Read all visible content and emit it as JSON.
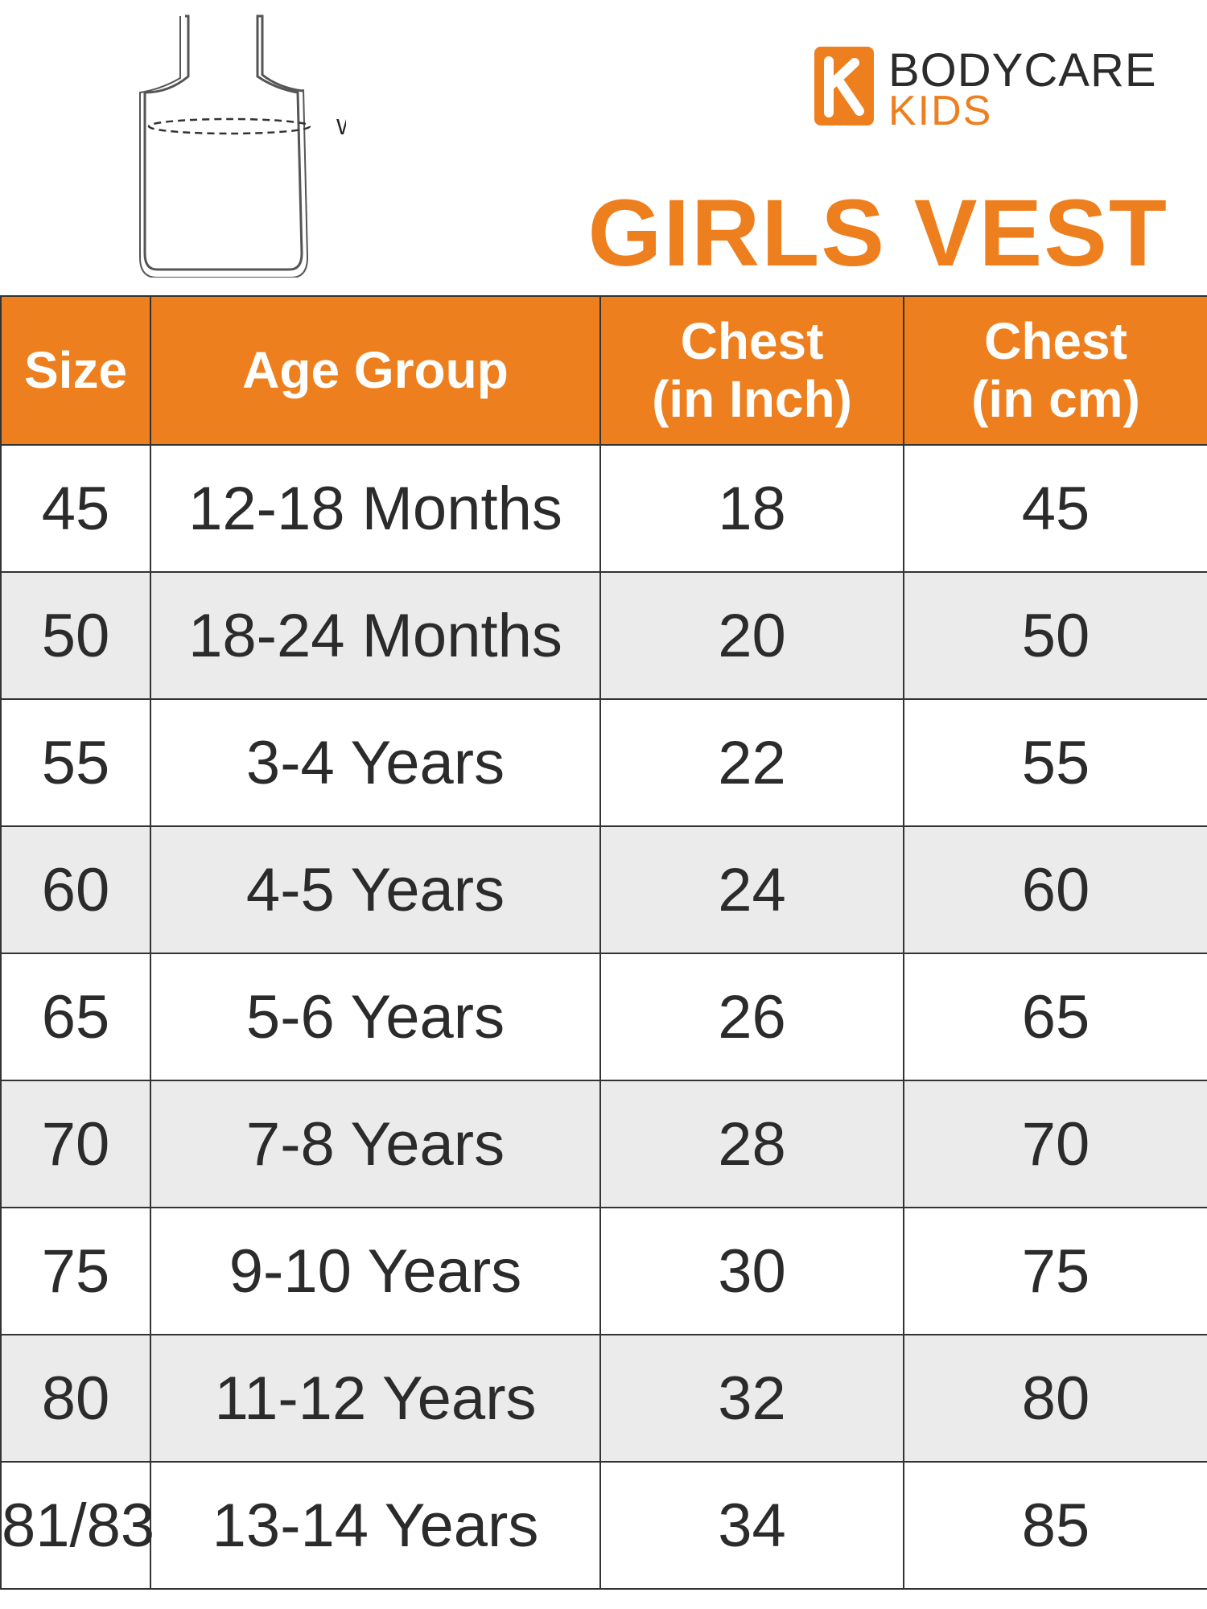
{
  "brand": {
    "name": "BODYCARE",
    "sub": "KIDS"
  },
  "illustration": {
    "label": "Waist"
  },
  "title": "GIRLS VEST",
  "table": {
    "header": [
      [
        "Size"
      ],
      [
        "Age Group"
      ],
      [
        "Chest",
        "(in Inch)"
      ],
      [
        "Chest",
        "(in cm)"
      ]
    ],
    "rows": [
      [
        45,
        "12-18 Months",
        18,
        45
      ],
      [
        50,
        "18-24 Months",
        20,
        50
      ],
      [
        55,
        "3-4 Years",
        22,
        55
      ],
      [
        60,
        "4-5 Years",
        24,
        60
      ],
      [
        65,
        "5-6 Years",
        26,
        65
      ],
      [
        70,
        "7-8 Years",
        28,
        70
      ],
      [
        75,
        "9-10 Years",
        30,
        75
      ],
      [
        80,
        "11-12 Years",
        32,
        80
      ],
      [
        "81/83",
        "13-14 Years",
        34,
        85
      ]
    ]
  }
}
